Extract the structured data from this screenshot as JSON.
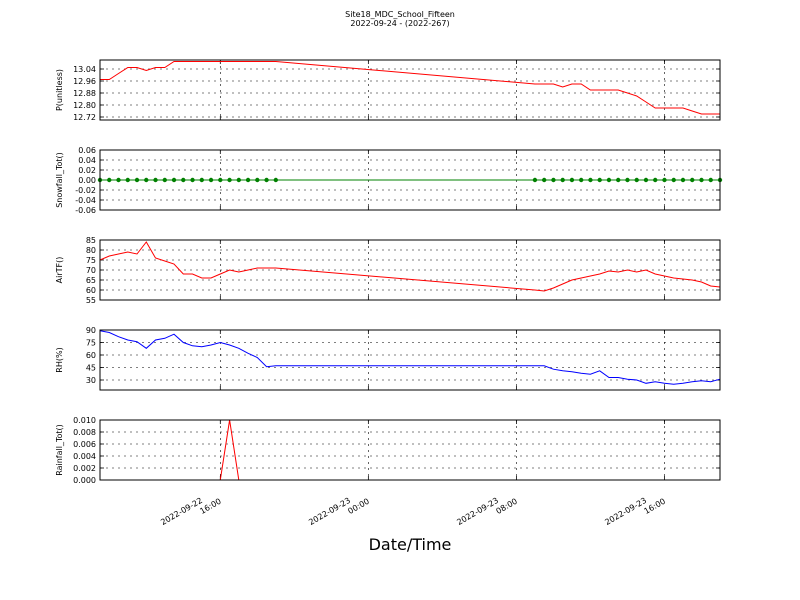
{
  "chart_data": [
    {
      "type": "line",
      "title": "Site18_MDC_School_Fifteen",
      "subtitle": "2022-09-24 - (2022-267)",
      "ylabel": "P(unitless)",
      "color": "#ff0000",
      "grid": true,
      "x": [
        "2022-09-22 09:30",
        "2022-09-22 10:00",
        "2022-09-22 10:30",
        "2022-09-22 11:00",
        "2022-09-22 11:30",
        "2022-09-22 12:00",
        "2022-09-22 12:30",
        "2022-09-22 13:00",
        "2022-09-22 13:30",
        "2022-09-22 14:00",
        "2022-09-22 14:30",
        "2022-09-22 15:00",
        "2022-09-22 15:30",
        "2022-09-22 16:00",
        "2022-09-22 16:30",
        "2022-09-22 17:00",
        "2022-09-22 17:30",
        "2022-09-22 18:00",
        "2022-09-22 18:30",
        "2022-09-22 19:00",
        "2022-09-23 09:00",
        "2022-09-23 09:30",
        "2022-09-23 10:00",
        "2022-09-23 10:30",
        "2022-09-23 11:00",
        "2022-09-23 11:30",
        "2022-09-23 12:00",
        "2022-09-23 12:30",
        "2022-09-23 13:00",
        "2022-09-23 13:30",
        "2022-09-23 14:00",
        "2022-09-23 14:30",
        "2022-09-23 15:00",
        "2022-09-23 15:30",
        "2022-09-23 16:00",
        "2022-09-23 16:30",
        "2022-09-23 17:00",
        "2022-09-23 17:30",
        "2022-09-23 18:00",
        "2022-09-23 18:30",
        "2022-09-23 19:00"
      ],
      "values": [
        12.97,
        12.97,
        13.01,
        13.05,
        13.05,
        13.03,
        13.05,
        13.05,
        13.09,
        13.09,
        13.09,
        13.09,
        13.09,
        13.09,
        13.09,
        13.09,
        13.09,
        13.09,
        13.09,
        13.09,
        12.94,
        12.94,
        12.94,
        12.92,
        12.94,
        12.94,
        12.9,
        12.9,
        12.9,
        12.9,
        12.88,
        12.86,
        12.82,
        12.78,
        12.78,
        12.78,
        12.78,
        12.76,
        12.74,
        12.74,
        12.74
      ],
      "xlim": [
        "2022-09-22 09:30",
        "2022-09-23 19:00"
      ],
      "xticks": [
        "2022-09-22 16:00",
        "2022-09-23 00:00",
        "2022-09-23 08:00",
        "2022-09-23 16:00"
      ],
      "ylim": [
        12.7,
        13.1
      ],
      "yticks": [
        {
          "value": 12.72,
          "label": "12.72"
        },
        {
          "value": 12.8,
          "label": "12.80"
        },
        12.88,
        12.96,
        13.04
      ]
    },
    {
      "type": "line",
      "ylabel": "Snowfall_Tot()",
      "color": "#008000",
      "marker": "o",
      "grid": true,
      "x": [
        "2022-09-22 09:30",
        "2022-09-22 10:00",
        "2022-09-22 10:30",
        "2022-09-22 11:00",
        "2022-09-22 11:30",
        "2022-09-22 12:00",
        "2022-09-22 12:30",
        "2022-09-22 13:00",
        "2022-09-22 13:30",
        "2022-09-22 14:00",
        "2022-09-22 14:30",
        "2022-09-22 15:00",
        "2022-09-22 15:30",
        "2022-09-22 16:00",
        "2022-09-22 16:30",
        "2022-09-22 17:00",
        "2022-09-22 17:30",
        "2022-09-22 18:00",
        "2022-09-22 18:30",
        "2022-09-22 19:00",
        "2022-09-23 09:00",
        "2022-09-23 09:30",
        "2022-09-23 10:00",
        "2022-09-23 10:30",
        "2022-09-23 11:00",
        "2022-09-23 11:30",
        "2022-09-23 12:00",
        "2022-09-23 12:30",
        "2022-09-23 13:00",
        "2022-09-23 13:30",
        "2022-09-23 14:00",
        "2022-09-23 14:30",
        "2022-09-23 15:00",
        "2022-09-23 15:30",
        "2022-09-23 16:00",
        "2022-09-23 16:30",
        "2022-09-23 17:00",
        "2022-09-23 17:30",
        "2022-09-23 18:00",
        "2022-09-23 18:30",
        "2022-09-23 19:00"
      ],
      "values": [
        0,
        0,
        0,
        0,
        0,
        0,
        0,
        0,
        0,
        0,
        0,
        0,
        0,
        0,
        0,
        0,
        0,
        0,
        0,
        0,
        0,
        0,
        0,
        0,
        0,
        0,
        0,
        0,
        0,
        0,
        0,
        0,
        0,
        0,
        0,
        0,
        0,
        0,
        0,
        0,
        0
      ],
      "xlim": [
        "2022-09-22 09:30",
        "2022-09-23 19:00"
      ],
      "xticks": [
        "2022-09-22 16:00",
        "2022-09-23 00:00",
        "2022-09-23 08:00",
        "2022-09-23 16:00"
      ],
      "ylim": [
        -0.06,
        0.06
      ],
      "yticks": [
        -0.06,
        -0.04,
        -0.02,
        {
          "value": 0,
          "label": "0.00"
        },
        0.02,
        0.04,
        0.06
      ]
    },
    {
      "type": "line",
      "ylabel": "AirTF()",
      "color": "#ff0000",
      "grid": true,
      "x": [
        "2022-09-22 09:30",
        "2022-09-22 10:00",
        "2022-09-22 10:30",
        "2022-09-22 11:00",
        "2022-09-22 11:30",
        "2022-09-22 12:00",
        "2022-09-22 12:30",
        "2022-09-22 13:00",
        "2022-09-22 13:30",
        "2022-09-22 14:00",
        "2022-09-22 14:30",
        "2022-09-22 15:00",
        "2022-09-22 15:30",
        "2022-09-22 16:00",
        "2022-09-22 16:30",
        "2022-09-22 17:00",
        "2022-09-22 17:30",
        "2022-09-22 18:00",
        "2022-09-22 18:30",
        "2022-09-22 19:00",
        "2022-09-23 09:00",
        "2022-09-23 09:30",
        "2022-09-23 10:00",
        "2022-09-23 10:30",
        "2022-09-23 11:00",
        "2022-09-23 11:30",
        "2022-09-23 12:00",
        "2022-09-23 12:30",
        "2022-09-23 13:00",
        "2022-09-23 13:30",
        "2022-09-23 14:00",
        "2022-09-23 14:30",
        "2022-09-23 15:00",
        "2022-09-23 15:30",
        "2022-09-23 16:00",
        "2022-09-23 16:30",
        "2022-09-23 17:00",
        "2022-09-23 17:30",
        "2022-09-23 18:00",
        "2022-09-23 18:30",
        "2022-09-23 19:00"
      ],
      "values": [
        75,
        77,
        78,
        79,
        78,
        84,
        76,
        74.5,
        73,
        68,
        68,
        66,
        66,
        68,
        70,
        69,
        70,
        71,
        71,
        71,
        60,
        59.5,
        61,
        63,
        65,
        66,
        67,
        68,
        69.5,
        69,
        70,
        69,
        70,
        68,
        67,
        66,
        65.5,
        65,
        64,
        62,
        61.5
      ],
      "xlim": [
        "2022-09-22 09:30",
        "2022-09-23 19:00"
      ],
      "xticks": [
        "2022-09-22 16:00",
        "2022-09-23 00:00",
        "2022-09-23 08:00",
        "2022-09-23 16:00"
      ],
      "ylim": [
        55,
        85
      ],
      "yticks": [
        55,
        60,
        65,
        70,
        75,
        80,
        85
      ]
    },
    {
      "type": "line",
      "ylabel": "RH(%)",
      "color": "#0000ff",
      "grid": true,
      "x": [
        "2022-09-22 09:30",
        "2022-09-22 10:00",
        "2022-09-22 10:30",
        "2022-09-22 11:00",
        "2022-09-22 11:30",
        "2022-09-22 12:00",
        "2022-09-22 12:30",
        "2022-09-22 13:00",
        "2022-09-22 13:30",
        "2022-09-22 14:00",
        "2022-09-22 14:30",
        "2022-09-22 15:00",
        "2022-09-22 15:30",
        "2022-09-22 16:00",
        "2022-09-22 16:30",
        "2022-09-22 17:00",
        "2022-09-22 17:30",
        "2022-09-22 18:00",
        "2022-09-22 18:30",
        "2022-09-22 19:00",
        "2022-09-23 09:00",
        "2022-09-23 09:30",
        "2022-09-23 10:00",
        "2022-09-23 10:30",
        "2022-09-23 11:00",
        "2022-09-23 11:30",
        "2022-09-23 12:00",
        "2022-09-23 12:30",
        "2022-09-23 13:00",
        "2022-09-23 13:30",
        "2022-09-23 14:00",
        "2022-09-23 14:30",
        "2022-09-23 15:00",
        "2022-09-23 15:30",
        "2022-09-23 16:00",
        "2022-09-23 16:30",
        "2022-09-23 17:00",
        "2022-09-23 17:30",
        "2022-09-23 18:00",
        "2022-09-23 18:30",
        "2022-09-23 19:00"
      ],
      "values": [
        89,
        87,
        82,
        78,
        76,
        68,
        78,
        80,
        85,
        75,
        71,
        70,
        72,
        75,
        72,
        68,
        62,
        57,
        46,
        47,
        47,
        47,
        43,
        41,
        40,
        38,
        37,
        41,
        33,
        33,
        31,
        30,
        26,
        28,
        26,
        25,
        26,
        28,
        29,
        28,
        31
      ],
      "xlim": [
        "2022-09-22 09:30",
        "2022-09-23 19:00"
      ],
      "xticks": [
        "2022-09-22 16:00",
        "2022-09-23 00:00",
        "2022-09-23 08:00",
        "2022-09-23 16:00"
      ],
      "ylim": [
        18,
        90
      ],
      "yticks": [
        30,
        45,
        60,
        75,
        90
      ]
    },
    {
      "type": "line",
      "ylabel": "Rainfall_Tot()",
      "xlabel": "Date/Time",
      "color": "#ff0000",
      "grid": true,
      "x": [
        "2022-09-22 09:30",
        "2022-09-22 10:00",
        "2022-09-22 10:30",
        "2022-09-22 11:00",
        "2022-09-22 11:30",
        "2022-09-22 12:00",
        "2022-09-22 12:30",
        "2022-09-22 13:00",
        "2022-09-22 13:30",
        "2022-09-22 14:00",
        "2022-09-22 14:30",
        "2022-09-22 15:00",
        "2022-09-22 15:30",
        "2022-09-22 16:00",
        "2022-09-22 16:30",
        "2022-09-22 17:00",
        "2022-09-22 17:30",
        "2022-09-22 18:00",
        "2022-09-22 18:30",
        "2022-09-22 19:00",
        "2022-09-23 09:00",
        "2022-09-23 09:30",
        "2022-09-23 10:00",
        "2022-09-23 10:30",
        "2022-09-23 11:00",
        "2022-09-23 11:30",
        "2022-09-23 12:00",
        "2022-09-23 12:30",
        "2022-09-23 13:00",
        "2022-09-23 13:30",
        "2022-09-23 14:00",
        "2022-09-23 14:30",
        "2022-09-23 15:00",
        "2022-09-23 15:30",
        "2022-09-23 16:00",
        "2022-09-23 16:30",
        "2022-09-23 17:00",
        "2022-09-23 17:30",
        "2022-09-23 18:00",
        "2022-09-23 18:30",
        "2022-09-23 19:00"
      ],
      "values": [
        0,
        0,
        0,
        0,
        0,
        0,
        0,
        0,
        0,
        0,
        0,
        0,
        0,
        0,
        0.01,
        0,
        0,
        0,
        0,
        0,
        0,
        0,
        0,
        0,
        0,
        0,
        0,
        0,
        0,
        0,
        0,
        0,
        0,
        0,
        0,
        0,
        0,
        0,
        0,
        0,
        0
      ],
      "xlim": [
        "2022-09-22 09:30",
        "2022-09-23 19:00"
      ],
      "xticks": [
        "2022-09-22 16:00",
        "2022-09-23 00:00",
        "2022-09-23 08:00",
        "2022-09-23 16:00"
      ],
      "ylim": [
        0,
        0.01
      ],
      "yticks": [
        {
          "value": 0,
          "label": "0.000"
        },
        0.002,
        0.004,
        0.006,
        0.008,
        {
          "value": 0.01,
          "label": "0.010"
        }
      ]
    }
  ]
}
